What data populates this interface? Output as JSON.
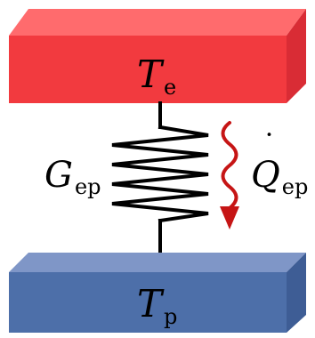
{
  "diagram": {
    "top_block": {
      "symbol": "T",
      "subscript": "e",
      "color_front": "#f23a3f",
      "color_top": "#ff6b6d",
      "color_side": "#d92c35"
    },
    "bottom_block": {
      "symbol": "T",
      "subscript": "p",
      "color_front": "#4d6fa9",
      "color_top": "#7f96c7",
      "color_side": "#3e5d95"
    },
    "conductance_label": {
      "symbol": "G",
      "subscript": "ep"
    },
    "heat_flow_label": {
      "symbol": "Q",
      "dot": "˙",
      "subscript": "ep"
    },
    "arrow_color": "#c61515",
    "spring_color": "#000000"
  }
}
